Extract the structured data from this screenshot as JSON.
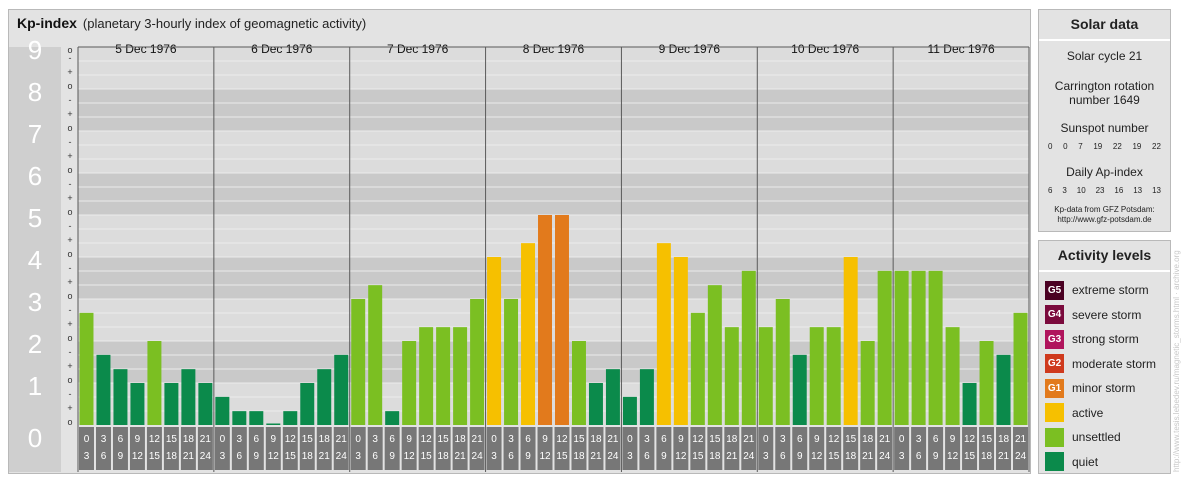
{
  "header": {
    "title": "Kp-index",
    "subtitle": "(planetary 3-hourly index of geomagnetic activity)"
  },
  "solar": {
    "title": "Solar data",
    "cycle": "Solar cycle 21",
    "rotation_line1": "Carrington rotation",
    "rotation_line2": "number 1649",
    "sunspot_title": "Sunspot number",
    "sunspot_values": [
      "0",
      "0",
      "7",
      "19",
      "22",
      "19",
      "22"
    ],
    "ap_title": "Daily Ap-index",
    "ap_values": [
      "6",
      "3",
      "10",
      "23",
      "16",
      "13",
      "13"
    ],
    "credit_line1": "Kp-data from GFZ Potsdam:",
    "credit_line2": "http://www.gfz-potsdam.de"
  },
  "activity": {
    "title": "Activity levels",
    "items": [
      {
        "badge": "G5",
        "label": "extreme storm",
        "color": "#4a0022"
      },
      {
        "badge": "G4",
        "label": "severe storm",
        "color": "#7a0a3c"
      },
      {
        "badge": "G3",
        "label": "strong storm",
        "color": "#b0145c"
      },
      {
        "badge": "G2",
        "label": "moderate storm",
        "color": "#cf3a1d"
      },
      {
        "badge": "G1",
        "label": "minor storm",
        "color": "#e27a1c"
      },
      {
        "badge": "",
        "label": "active",
        "color": "#f6c000"
      },
      {
        "badge": "",
        "label": "unsettled",
        "color": "#7bbf22"
      },
      {
        "badge": "",
        "label": "quiet",
        "color": "#0b8a4b"
      }
    ]
  },
  "watermark": "http://www.tesis.lebedev.ru/magnetic_storms.html · archive.org",
  "chart_data": {
    "type": "bar",
    "title": "Kp-index",
    "ylim": [
      0,
      9
    ],
    "y_ticks": [
      "0",
      "1",
      "2",
      "3",
      "4",
      "5",
      "6",
      "7",
      "8",
      "9"
    ],
    "sub_ticks": [
      "o",
      "+",
      "-"
    ],
    "days": [
      "5 Dec 1976",
      "6 Dec 1976",
      "7 Dec 1976",
      "8 Dec 1976",
      "9 Dec 1976",
      "10 Dec 1976",
      "11 Dec 1976"
    ],
    "slot_top": [
      "0",
      "3",
      "6",
      "9",
      "12",
      "15",
      "18",
      "21"
    ],
    "slot_bottom": [
      "3",
      "6",
      "9",
      "12",
      "15",
      "18",
      "21",
      "24"
    ],
    "values": [
      2.67,
      1.67,
      1.33,
      1.0,
      2.0,
      1.0,
      1.33,
      1.0,
      0.67,
      0.33,
      0.33,
      0.0,
      0.33,
      1.0,
      1.33,
      1.67,
      3.0,
      3.33,
      0.33,
      2.0,
      2.33,
      2.33,
      2.33,
      3.0,
      4.0,
      3.0,
      4.33,
      5.0,
      5.0,
      2.0,
      1.0,
      1.33,
      0.67,
      1.33,
      4.33,
      4.0,
      2.67,
      3.33,
      2.33,
      3.67,
      2.33,
      3.0,
      1.67,
      2.33,
      2.33,
      4.0,
      2.0,
      3.67,
      3.67,
      3.67,
      3.67,
      2.33,
      1.0,
      2.0,
      1.67,
      2.67
    ],
    "level_colors": {
      "quiet": "#0b8a4b",
      "unsettled": "#7bbf22",
      "active": "#f6c000",
      "minor_storm": "#e27a1c",
      "moderate_storm": "#cf3a1d"
    }
  }
}
